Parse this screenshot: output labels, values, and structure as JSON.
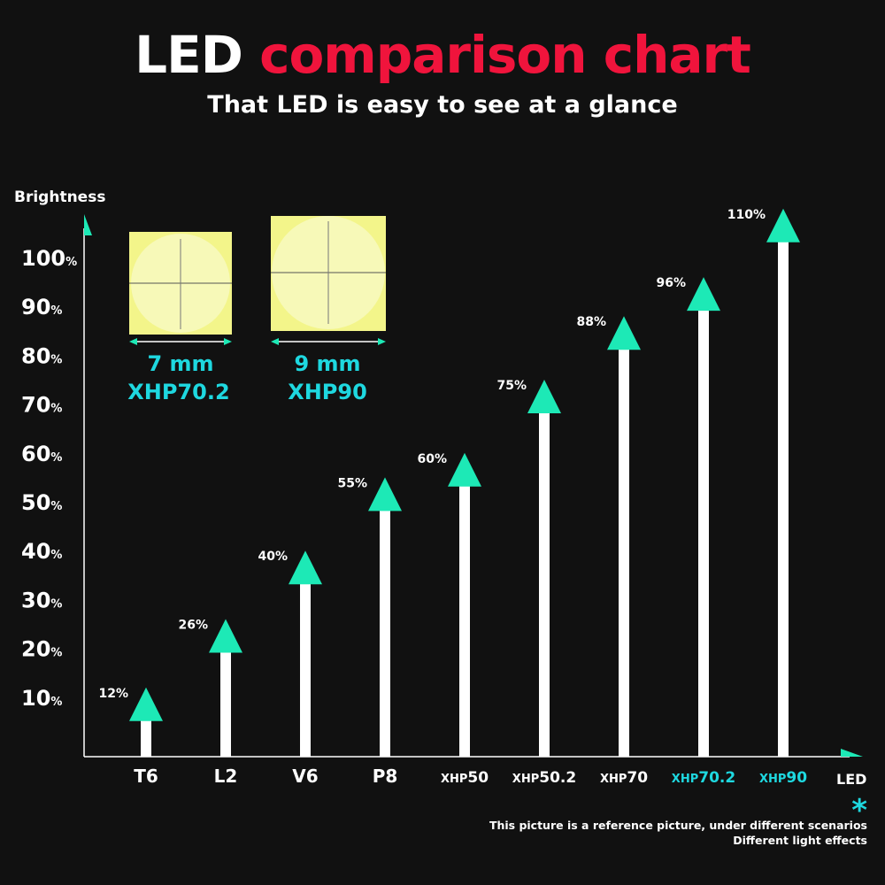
{
  "title": {
    "part1": "LED",
    "part2": "comparison chart"
  },
  "subtitle": "That LED is easy to see at a glance",
  "colors": {
    "background": "#111111",
    "accent_red": "#f0143c",
    "arrow_teal": "#1de9b6",
    "highlight_cyan": "#1ed8e0",
    "bar_white": "#ffffff"
  },
  "led_images": [
    {
      "size": "7 mm",
      "model": "XHP70.2"
    },
    {
      "size": "9 mm",
      "model": "XHP90"
    }
  ],
  "footnote": {
    "star": "*",
    "line1": "This picture is a reference picture, under different scenarios",
    "line2": "Different light effects"
  },
  "chart_data": {
    "type": "bar",
    "ylabel": "Brightness",
    "xlabel": "LED",
    "y_ticks": [
      "10%",
      "20%",
      "30%",
      "40%",
      "50%",
      "60%",
      "70%",
      "80%",
      "90%",
      "100%"
    ],
    "ylim": [
      0,
      110
    ],
    "grid": false,
    "categories": [
      "T6",
      "L2",
      "V6",
      "P8",
      "XHP50",
      "XHP50.2",
      "XHP70",
      "XHP70.2",
      "XHP90"
    ],
    "highlighted": [
      "XHP70.2",
      "XHP90"
    ],
    "values": [
      12,
      26,
      40,
      55,
      60,
      75,
      88,
      96,
      110
    ],
    "data_labels": [
      "12%",
      "26%",
      "40%",
      "55%",
      "60%",
      "75%",
      "88%",
      "96%",
      "110%"
    ]
  }
}
